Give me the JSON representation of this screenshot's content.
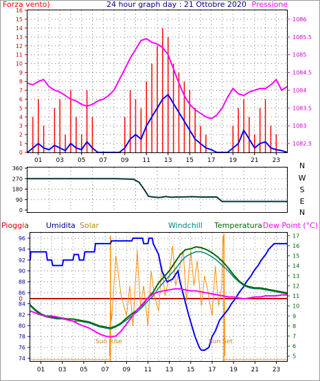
{
  "colors": {
    "wind": "#ff0000",
    "gust": "#ff0000",
    "wind_avg": "#0000ff",
    "pressure": "#ff00ff",
    "direction": "#003333",
    "humidity": "#0000ff",
    "solar": "#ff8c00",
    "windchill": "#008080",
    "temperature": "#006600",
    "dew_point": "#ff00ff",
    "rain": "#cc0000",
    "frame": "#000000",
    "grid": "#777777",
    "title": "#00008b"
  },
  "chart_data": [
    {
      "type": "line",
      "title": "24 hour graph day : 21 Ottobre 2020",
      "left_axis_title": "Forza vento)",
      "right_axis_title": "Pressione",
      "x_ticks": [
        "01",
        "03",
        "05",
        "07",
        "09",
        "11",
        "13",
        "15",
        "17",
        "19",
        "21",
        "23"
      ],
      "y_left_ticks": [
        "0",
        "1",
        "2",
        "3",
        "4",
        "5",
        "6",
        "7",
        "8",
        "9",
        "10",
        "11",
        "12",
        "13",
        "14",
        "15",
        "16"
      ],
      "y_left_lim": [
        0,
        16
      ],
      "y_right_ticks": [
        "1082.5",
        "1083",
        "1083.5",
        "1084",
        "1084.5",
        "1085",
        "1085.5",
        "1086"
      ],
      "y_right_lim": [
        1082.25,
        1086.25
      ],
      "x_hours_range": [
        0,
        24
      ],
      "grid": true,
      "series": [
        {
          "key": "pressure",
          "axis": "right",
          "x": [
            0,
            0.5,
            1,
            1.5,
            2,
            2.5,
            3,
            3.5,
            4,
            4.5,
            5,
            5.5,
            6,
            6.5,
            7,
            7.5,
            8,
            8.5,
            9,
            9.5,
            10,
            10.5,
            11,
            11.5,
            12,
            12.5,
            13,
            13.5,
            14,
            14.5,
            15,
            15.5,
            16,
            16.5,
            17,
            17.5,
            18,
            18.5,
            19,
            19.5,
            20,
            20.5,
            21,
            21.5,
            22,
            22.5,
            23,
            23.5,
            24
          ],
          "values": [
            1084.2,
            1084.15,
            1084.25,
            1084.3,
            1084.1,
            1084.0,
            1083.95,
            1083.85,
            1083.75,
            1083.7,
            1083.6,
            1083.55,
            1083.6,
            1083.7,
            1083.75,
            1083.85,
            1084.0,
            1084.3,
            1084.6,
            1084.9,
            1085.15,
            1085.4,
            1085.45,
            1085.35,
            1085.3,
            1085.2,
            1085.0,
            1084.6,
            1084.2,
            1083.85,
            1083.6,
            1083.45,
            1083.35,
            1083.25,
            1083.2,
            1083.3,
            1083.5,
            1083.8,
            1084.05,
            1083.9,
            1083.85,
            1083.95,
            1084.0,
            1084.05,
            1084.05,
            1084.15,
            1084.3,
            1084.0,
            1084.1
          ]
        },
        {
          "key": "wind_avg",
          "axis": "left",
          "x": [
            0,
            0.5,
            1,
            1.5,
            2,
            2.5,
            3,
            3.5,
            4,
            4.5,
            5,
            5.5,
            6,
            6.5,
            7,
            7.5,
            8,
            8.5,
            9,
            9.5,
            10,
            10.5,
            11,
            11.5,
            12,
            12.5,
            13,
            13.5,
            14,
            14.5,
            15,
            15.5,
            16,
            16.5,
            17,
            17.5,
            18,
            18.5,
            19,
            19.5,
            20,
            20.5,
            21,
            21.5,
            22,
            22.5,
            23,
            23.5,
            24
          ],
          "values": [
            0,
            0.5,
            1,
            0.5,
            0.3,
            0.8,
            0.5,
            0.2,
            1.0,
            0.5,
            0.3,
            1.2,
            0.5,
            0,
            0,
            0,
            0,
            0,
            0.5,
            1.5,
            2.0,
            1.5,
            3.0,
            4.0,
            5.0,
            6.0,
            6.5,
            5.5,
            4.5,
            3.5,
            2.5,
            1.5,
            1.0,
            0.5,
            0.3,
            0,
            0,
            0,
            0.5,
            1.0,
            2.5,
            1.5,
            0.5,
            1.0,
            1.2,
            0.5,
            0.3,
            0.2,
            0
          ]
        }
      ],
      "wind_max": {
        "x": [
          0,
          0.5,
          1,
          1.5,
          2,
          2.5,
          3,
          3.5,
          4,
          4.5,
          5,
          5.5,
          6,
          6.5,
          7,
          7.5,
          8,
          8.5,
          9,
          9.5,
          10,
          10.5,
          11,
          11.5,
          12,
          12.5,
          13,
          13.5,
          14,
          14.5,
          15,
          15.5,
          16,
          16.5,
          17,
          17.5,
          18,
          18.5,
          19,
          19.5,
          20,
          20.5,
          21,
          21.5,
          22,
          22.5,
          23,
          23.5,
          24
        ],
        "values": [
          0,
          4,
          6,
          3,
          0,
          5,
          6,
          2,
          7,
          4,
          2,
          7,
          4,
          0,
          0,
          0,
          0,
          0,
          4,
          7,
          6,
          5,
          8,
          10,
          12,
          14,
          13,
          10,
          9,
          8,
          7,
          5,
          3,
          2,
          0,
          0,
          0,
          0,
          3,
          5,
          6,
          4,
          2,
          5,
          6,
          3,
          2,
          0,
          0
        ]
      },
      "right_labels": [
        "N",
        "W",
        "S",
        "E",
        "N"
      ]
    },
    {
      "type": "line",
      "x_hours_range": [
        0,
        24
      ],
      "y_ticks": [
        "0",
        "90",
        "180",
        "270",
        "360"
      ],
      "y_lim": [
        0,
        360
      ],
      "grid": true,
      "series": [
        {
          "key": "direction",
          "x": [
            0,
            2,
            4,
            6,
            7,
            8,
            9,
            9.8,
            10.3,
            10.7,
            11.2,
            11.6,
            12.2,
            12.8,
            13.3,
            13.8,
            14.5,
            15.2,
            16,
            17,
            17.5,
            18,
            19,
            20,
            21,
            22,
            23,
            24
          ],
          "values": [
            270,
            270,
            270,
            270,
            270,
            270,
            268,
            265,
            240,
            190,
            118,
            112,
            108,
            116,
            110,
            112,
            113,
            115,
            112,
            112,
            112,
            74,
            74,
            74,
            74,
            74,
            74,
            74
          ]
        }
      ]
    },
    {
      "type": "line",
      "legend": {
        "rain": "Pioggia",
        "humidity": "Umidita",
        "solar": "Solar",
        "windchill": "Windchill",
        "temperature": "Temperatura",
        "dew_point": "Dew Point (°C)"
      },
      "x_ticks": [
        "01",
        "03",
        "05",
        "07",
        "09",
        "11",
        "13",
        "15",
        "17",
        "19",
        "21",
        "23"
      ],
      "x_hours_range": [
        0,
        24
      ],
      "y_left_ticks": [
        "74",
        "76",
        "78",
        "80",
        "82",
        "84",
        "86",
        "88",
        "90",
        "92",
        "94",
        "96"
      ],
      "y_left_lim": [
        73.5,
        97
      ],
      "y_right_ticks": [
        "5",
        "6",
        "7",
        "8",
        "9",
        "10",
        "11",
        "12",
        "13",
        "14",
        "15",
        "16",
        "17"
      ],
      "y_right_lim": [
        4.5,
        17.3
      ],
      "rain_zero_label": "0",
      "sun_rise_label": "Sun Rise",
      "sun_set_label": "Sun Set",
      "sun_rise_hour": 7.5,
      "sun_set_hour": 18.1,
      "grid": true,
      "series": [
        {
          "key": "humidity",
          "axis": "left",
          "x": [
            0,
            0.05,
            1.5,
            1.6,
            2.0,
            2.1,
            3.0,
            3.1,
            4.0,
            4.1,
            4.5,
            4.6,
            5.0,
            5.1,
            6.0,
            6.1,
            7.5,
            7.6,
            9.5,
            9.6,
            10.5,
            10.6,
            11.0,
            11.1,
            11.4,
            11.5,
            12.0,
            12.3,
            12.8,
            13.3,
            13.8,
            14.0,
            14.4,
            14.8,
            15.1,
            15.4,
            15.8,
            16.0,
            16.3,
            16.7,
            17.0,
            17.3,
            17.7,
            18.1,
            18.5,
            18.8,
            19.2,
            19.5,
            19.9,
            20.2,
            20.6,
            20.9,
            21.3,
            21.6,
            22.0,
            22.3,
            22.8,
            23.2,
            24
          ],
          "values": [
            92,
            93.5,
            93.5,
            92,
            92,
            91,
            91,
            92,
            92,
            93,
            93,
            92,
            92,
            93.5,
            93.5,
            95,
            95,
            95.5,
            95.5,
            96,
            96,
            95,
            95,
            96,
            96,
            95,
            93,
            90,
            88,
            88.5,
            90,
            88,
            85,
            82,
            80,
            78,
            76,
            75.5,
            75.5,
            76,
            78,
            79,
            81,
            82,
            83,
            84,
            85,
            86,
            87,
            88,
            89,
            90,
            91,
            92,
            93,
            94,
            95,
            95,
            95
          ]
        },
        {
          "key": "temperature",
          "axis": "right",
          "x": [
            0,
            0.5,
            1,
            1.5,
            2,
            2.5,
            3,
            3.5,
            4,
            4.5,
            5,
            5.5,
            6,
            6.5,
            7,
            7.5,
            8,
            8.5,
            9,
            9.5,
            10,
            10.5,
            11,
            11.5,
            12,
            12.5,
            13,
            13.5,
            14,
            14.5,
            15,
            15.5,
            16,
            16.5,
            17,
            17.5,
            18,
            18.5,
            19,
            19.5,
            20,
            20.5,
            21,
            21.5,
            22,
            22.5,
            23,
            23.5,
            24
          ],
          "values": [
            10.1,
            9.6,
            9.2,
            9.0,
            8.9,
            8.8,
            8.8,
            8.7,
            8.7,
            8.6,
            8.5,
            8.4,
            8.2,
            8.0,
            7.9,
            7.8,
            8.0,
            8.3,
            8.8,
            9.2,
            9.6,
            10.1,
            10.8,
            11.4,
            12.3,
            12.9,
            13.5,
            14.3,
            15.1,
            15.6,
            15.7,
            15.9,
            15.8,
            15.6,
            15.3,
            14.9,
            14.4,
            13.8,
            13.1,
            12.5,
            12.1,
            11.9,
            11.8,
            11.8,
            11.7,
            11.6,
            11.5,
            11.4,
            11.3
          ]
        },
        {
          "key": "windchill",
          "axis": "right",
          "x": [
            0,
            0.5,
            1,
            1.5,
            2,
            2.5,
            3,
            3.5,
            4,
            4.5,
            5,
            5.5,
            6,
            6.5,
            7,
            7.5,
            8,
            8.5,
            9,
            9.5,
            10,
            10.5,
            11,
            11.5,
            12,
            12.5,
            13,
            13.5,
            14,
            14.5,
            15,
            15.5,
            16,
            16.5,
            17,
            17.5,
            18,
            18.5,
            19,
            19.5,
            20,
            20.5,
            21,
            21.5,
            22,
            22.5,
            23,
            23.5,
            24
          ],
          "values": [
            10.0,
            9.5,
            9.1,
            8.9,
            8.8,
            8.7,
            8.7,
            8.6,
            8.5,
            8.5,
            8.4,
            8.3,
            8.1,
            7.9,
            7.8,
            7.7,
            7.9,
            8.2,
            8.6,
            9.0,
            9.4,
            9.9,
            10.5,
            11.0,
            11.8,
            12.4,
            13.0,
            13.6,
            14.3,
            14.9,
            15.2,
            15.4,
            15.4,
            15.2,
            14.9,
            14.5,
            14.0,
            13.5,
            12.9,
            12.4,
            12.0,
            11.8,
            11.7,
            11.7,
            11.6,
            11.5,
            11.4,
            11.3,
            11.2
          ]
        },
        {
          "key": "dew_point",
          "axis": "right",
          "x": [
            0,
            0.5,
            1,
            1.5,
            2,
            2.5,
            3,
            3.5,
            4,
            4.5,
            5,
            5.5,
            6,
            6.5,
            7,
            7.5,
            8,
            8.5,
            9,
            9.5,
            10,
            10.5,
            11,
            11.5,
            12,
            12.5,
            13,
            13.5,
            14,
            14.5,
            15,
            15.5,
            16,
            16.5,
            17,
            17.5,
            18,
            18.5,
            19,
            19.5,
            20,
            20.5,
            21,
            21.5,
            22,
            22.5,
            23,
            23.5,
            24
          ],
          "values": [
            9.5,
            9.3,
            9.1,
            9.0,
            9.0,
            8.9,
            8.8,
            8.6,
            8.5,
            8.2,
            8.0,
            7.8,
            7.5,
            7.2,
            7.0,
            6.9,
            7.0,
            7.5,
            8.2,
            8.9,
            9.6,
            10.2,
            10.8,
            11.2,
            11.4,
            11.5,
            11.6,
            11.7,
            11.7,
            11.6,
            11.5,
            11.5,
            11.4,
            11.3,
            11.2,
            11.1,
            11.0,
            10.9,
            10.9,
            10.8,
            10.7,
            10.8,
            10.9,
            10.9,
            11.0,
            11.0,
            11.0,
            11.1,
            11.1
          ]
        },
        {
          "key": "solar",
          "axis": "right",
          "x": [
            7.4,
            7.5,
            7.6,
            8.0,
            8.5,
            9.0,
            9.3,
            9.6,
            10.0,
            10.3,
            10.6,
            11.0,
            11.3,
            11.6,
            12.0,
            12.3,
            12.6,
            13.0,
            13.3,
            13.6,
            14.0,
            14.3,
            14.6,
            15.0,
            15.3,
            15.6,
            16.0,
            16.3,
            16.6,
            17.0,
            17.3,
            17.6,
            17.9,
            18.0,
            18.1,
            18.2
          ],
          "values": [
            5.0,
            10.0,
            8.5,
            15.0,
            11.0,
            9.0,
            12.0,
            8.0,
            15.5,
            10.0,
            12.0,
            8.0,
            13.5,
            11.0,
            9.5,
            14.0,
            11.0,
            13.0,
            16.0,
            12.0,
            14.0,
            15.5,
            10.5,
            15.5,
            12.0,
            14.5,
            10.0,
            13.0,
            11.5,
            9.0,
            14.0,
            10.0,
            12.0,
            17.0,
            16.0,
            5.0
          ]
        }
      ]
    }
  ]
}
